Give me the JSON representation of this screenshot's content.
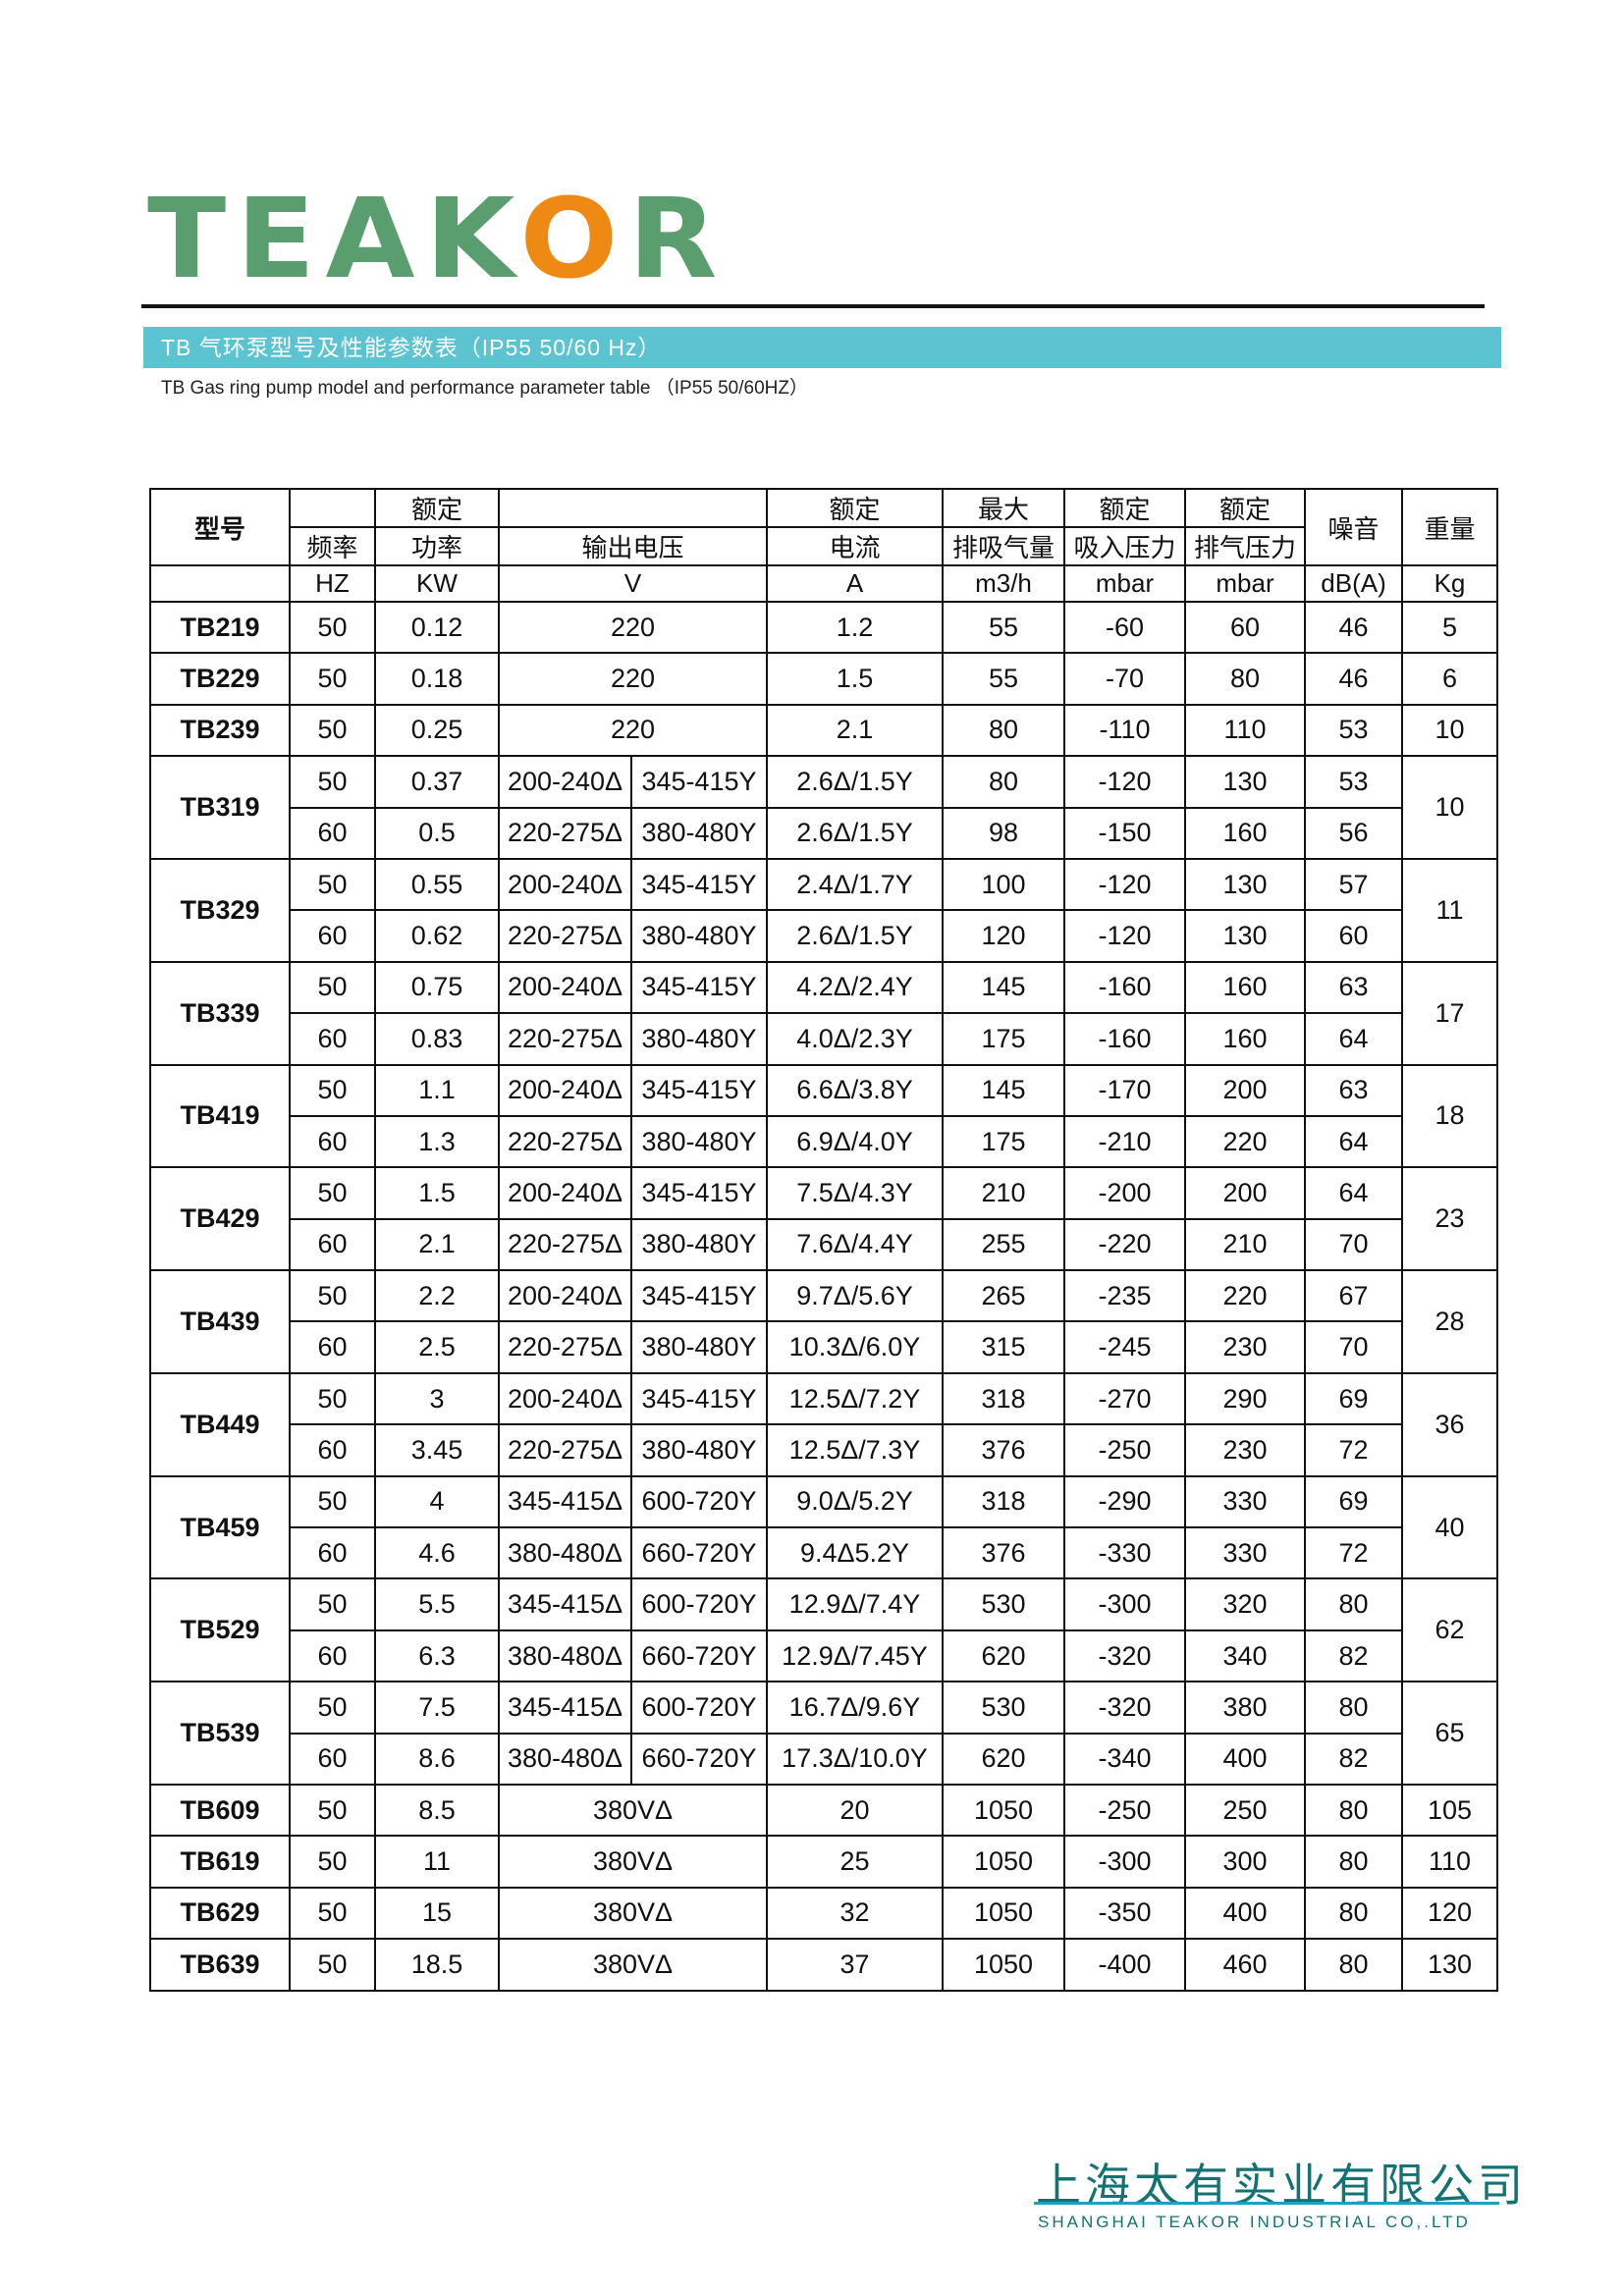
{
  "logo": {
    "text_before": "TEAK",
    "text_o": "O",
    "text_after": "R",
    "colors": {
      "green": "#5a9e6f",
      "orange": "#ee8a14"
    }
  },
  "title": "TB  气环泵型号及性能参数表（IP55 50/60 Hz）",
  "subtitle": "TB  Gas ring pump model and performance parameter table （IP55 50/60HZ）",
  "header": {
    "model": "型号",
    "freq": "频率",
    "freq_unit": "HZ",
    "power_top": "额定",
    "power": "功率",
    "power_unit": "KW",
    "voltage": "输出电压",
    "voltage_unit": "V",
    "current_top": "额定",
    "current": "电流",
    "current_unit": "A",
    "flow_top": "最大",
    "flow": "排吸气量",
    "flow_unit": "m3/h",
    "vac_top": "额定",
    "vac": "吸入压力",
    "vac_unit": "mbar",
    "press_top": "额定",
    "press": "排气压力",
    "press_unit": "mbar",
    "noise": "噪音",
    "noise_unit": "dB(A)",
    "weight": "重量",
    "weight_unit": "Kg"
  },
  "models": [
    {
      "model": "TB219",
      "weight": "5",
      "rows": [
        {
          "hz": "50",
          "kw": "0.12",
          "v": "220",
          "a": "1.2",
          "flow": "55",
          "vac": "-60",
          "press": "60",
          "db": "46"
        }
      ]
    },
    {
      "model": "TB229",
      "weight": "6",
      "rows": [
        {
          "hz": "50",
          "kw": "0.18",
          "v": "220",
          "a": "1.5",
          "flow": "55",
          "vac": "-70",
          "press": "80",
          "db": "46"
        }
      ]
    },
    {
      "model": "TB239",
      "weight": "10",
      "rows": [
        {
          "hz": "50",
          "kw": "0.25",
          "v": "220",
          "a": "2.1",
          "flow": "80",
          "vac": "-110",
          "press": "110",
          "db": "53"
        }
      ]
    },
    {
      "model": "TB319",
      "weight": "10",
      "rows": [
        {
          "hz": "50",
          "kw": "0.37",
          "v1": "200-240Δ",
          "v2": "345-415Y",
          "a": "2.6Δ/1.5Y",
          "flow": "80",
          "vac": "-120",
          "press": "130",
          "db": "53"
        },
        {
          "hz": "60",
          "kw": "0.5",
          "v1": "220-275Δ",
          "v2": "380-480Y",
          "a": "2.6Δ/1.5Y",
          "flow": "98",
          "vac": "-150",
          "press": "160",
          "db": "56"
        }
      ]
    },
    {
      "model": "TB329",
      "weight": "11",
      "rows": [
        {
          "hz": "50",
          "kw": "0.55",
          "v1": "200-240Δ",
          "v2": "345-415Y",
          "a": "2.4Δ/1.7Y",
          "flow": "100",
          "vac": "-120",
          "press": "130",
          "db": "57"
        },
        {
          "hz": "60",
          "kw": "0.62",
          "v1": "220-275Δ",
          "v2": "380-480Y",
          "a": "2.6Δ/1.5Y",
          "flow": "120",
          "vac": "-120",
          "press": "130",
          "db": "60"
        }
      ]
    },
    {
      "model": "TB339",
      "weight": "17",
      "rows": [
        {
          "hz": "50",
          "kw": "0.75",
          "v1": "200-240Δ",
          "v2": "345-415Y",
          "a": "4.2Δ/2.4Y",
          "flow": "145",
          "vac": "-160",
          "press": "160",
          "db": "63"
        },
        {
          "hz": "60",
          "kw": "0.83",
          "v1": "220-275Δ",
          "v2": "380-480Y",
          "a": "4.0Δ/2.3Y",
          "flow": "175",
          "vac": "-160",
          "press": "160",
          "db": "64"
        }
      ]
    },
    {
      "model": "TB419",
      "weight": "18",
      "rows": [
        {
          "hz": "50",
          "kw": "1.1",
          "v1": "200-240Δ",
          "v2": "345-415Y",
          "a": "6.6Δ/3.8Y",
          "flow": "145",
          "vac": "-170",
          "press": "200",
          "db": "63"
        },
        {
          "hz": "60",
          "kw": "1.3",
          "v1": "220-275Δ",
          "v2": "380-480Y",
          "a": "6.9Δ/4.0Y",
          "flow": "175",
          "vac": "-210",
          "press": "220",
          "db": "64"
        }
      ]
    },
    {
      "model": "TB429",
      "weight": "23",
      "rows": [
        {
          "hz": "50",
          "kw": "1.5",
          "v1": "200-240Δ",
          "v2": "345-415Y",
          "a": "7.5Δ/4.3Y",
          "flow": "210",
          "vac": "-200",
          "press": "200",
          "db": "64"
        },
        {
          "hz": "60",
          "kw": "2.1",
          "v1": "220-275Δ",
          "v2": "380-480Y",
          "a": "7.6Δ/4.4Y",
          "flow": "255",
          "vac": "-220",
          "press": "210",
          "db": "70"
        }
      ]
    },
    {
      "model": "TB439",
      "weight": "28",
      "rows": [
        {
          "hz": "50",
          "kw": "2.2",
          "v1": "200-240Δ",
          "v2": "345-415Y",
          "a": "9.7Δ/5.6Y",
          "flow": "265",
          "vac": "-235",
          "press": "220",
          "db": "67"
        },
        {
          "hz": "60",
          "kw": "2.5",
          "v1": "220-275Δ",
          "v2": "380-480Y",
          "a": "10.3Δ/6.0Y",
          "flow": "315",
          "vac": "-245",
          "press": "230",
          "db": "70"
        }
      ]
    },
    {
      "model": "TB449",
      "weight": "36",
      "rows": [
        {
          "hz": "50",
          "kw": "3",
          "v1": "200-240Δ",
          "v2": "345-415Y",
          "a": "12.5Δ/7.2Y",
          "flow": "318",
          "vac": "-270",
          "press": "290",
          "db": "69"
        },
        {
          "hz": "60",
          "kw": "3.45",
          "v1": "220-275Δ",
          "v2": "380-480Y",
          "a": "12.5Δ/7.3Y",
          "flow": "376",
          "vac": "-250",
          "press": "230",
          "db": "72"
        }
      ]
    },
    {
      "model": "TB459",
      "weight": "40",
      "rows": [
        {
          "hz": "50",
          "kw": "4",
          "v1": "345-415Δ",
          "v2": "600-720Y",
          "a": "9.0Δ/5.2Y",
          "flow": "318",
          "vac": "-290",
          "press": "330",
          "db": "69"
        },
        {
          "hz": "60",
          "kw": "4.6",
          "v1": "380-480Δ",
          "v2": "660-720Y",
          "a": "9.4Δ5.2Y",
          "flow": "376",
          "vac": "-330",
          "press": "330",
          "db": "72"
        }
      ]
    },
    {
      "model": "TB529",
      "weight": "62",
      "rows": [
        {
          "hz": "50",
          "kw": "5.5",
          "v1": "345-415Δ",
          "v2": "600-720Y",
          "a": "12.9Δ/7.4Y",
          "flow": "530",
          "vac": "-300",
          "press": "320",
          "db": "80"
        },
        {
          "hz": "60",
          "kw": "6.3",
          "v1": "380-480Δ",
          "v2": "660-720Y",
          "a": "12.9Δ/7.45Y",
          "flow": "620",
          "vac": "-320",
          "press": "340",
          "db": "82"
        }
      ]
    },
    {
      "model": "TB539",
      "weight": "65",
      "rows": [
        {
          "hz": "50",
          "kw": "7.5",
          "v1": "345-415Δ",
          "v2": "600-720Y",
          "a": "16.7Δ/9.6Y",
          "flow": "530",
          "vac": "-320",
          "press": "380",
          "db": "80"
        },
        {
          "hz": "60",
          "kw": "8.6",
          "v1": "380-480Δ",
          "v2": "660-720Y",
          "a": "17.3Δ/10.0Y",
          "flow": "620",
          "vac": "-340",
          "press": "400",
          "db": "82"
        }
      ]
    },
    {
      "model": "TB609",
      "weight": "105",
      "rows": [
        {
          "hz": "50",
          "kw": "8.5",
          "v": "380VΔ",
          "a": "20",
          "flow": "1050",
          "vac": "-250",
          "press": "250",
          "db": "80"
        }
      ]
    },
    {
      "model": "TB619",
      "weight": "110",
      "rows": [
        {
          "hz": "50",
          "kw": "11",
          "v": "380VΔ",
          "a": "25",
          "flow": "1050",
          "vac": "-300",
          "press": "300",
          "db": "80"
        }
      ]
    },
    {
      "model": "TB629",
      "weight": "120",
      "rows": [
        {
          "hz": "50",
          "kw": "15",
          "v": "380VΔ",
          "a": "32",
          "flow": "1050",
          "vac": "-350",
          "press": "400",
          "db": "80"
        }
      ]
    },
    {
      "model": "TB639",
      "weight": "130",
      "rows": [
        {
          "hz": "50",
          "kw": "18.5",
          "v": "380VΔ",
          "a": "37",
          "flow": "1050",
          "vac": "-400",
          "press": "460",
          "db": "80"
        }
      ]
    }
  ],
  "footer": {
    "company_cn": "上海太有实业有限公司",
    "company_en": "SHANGHAI TEAKOR INDUSTRIAL CO,.LTD"
  }
}
